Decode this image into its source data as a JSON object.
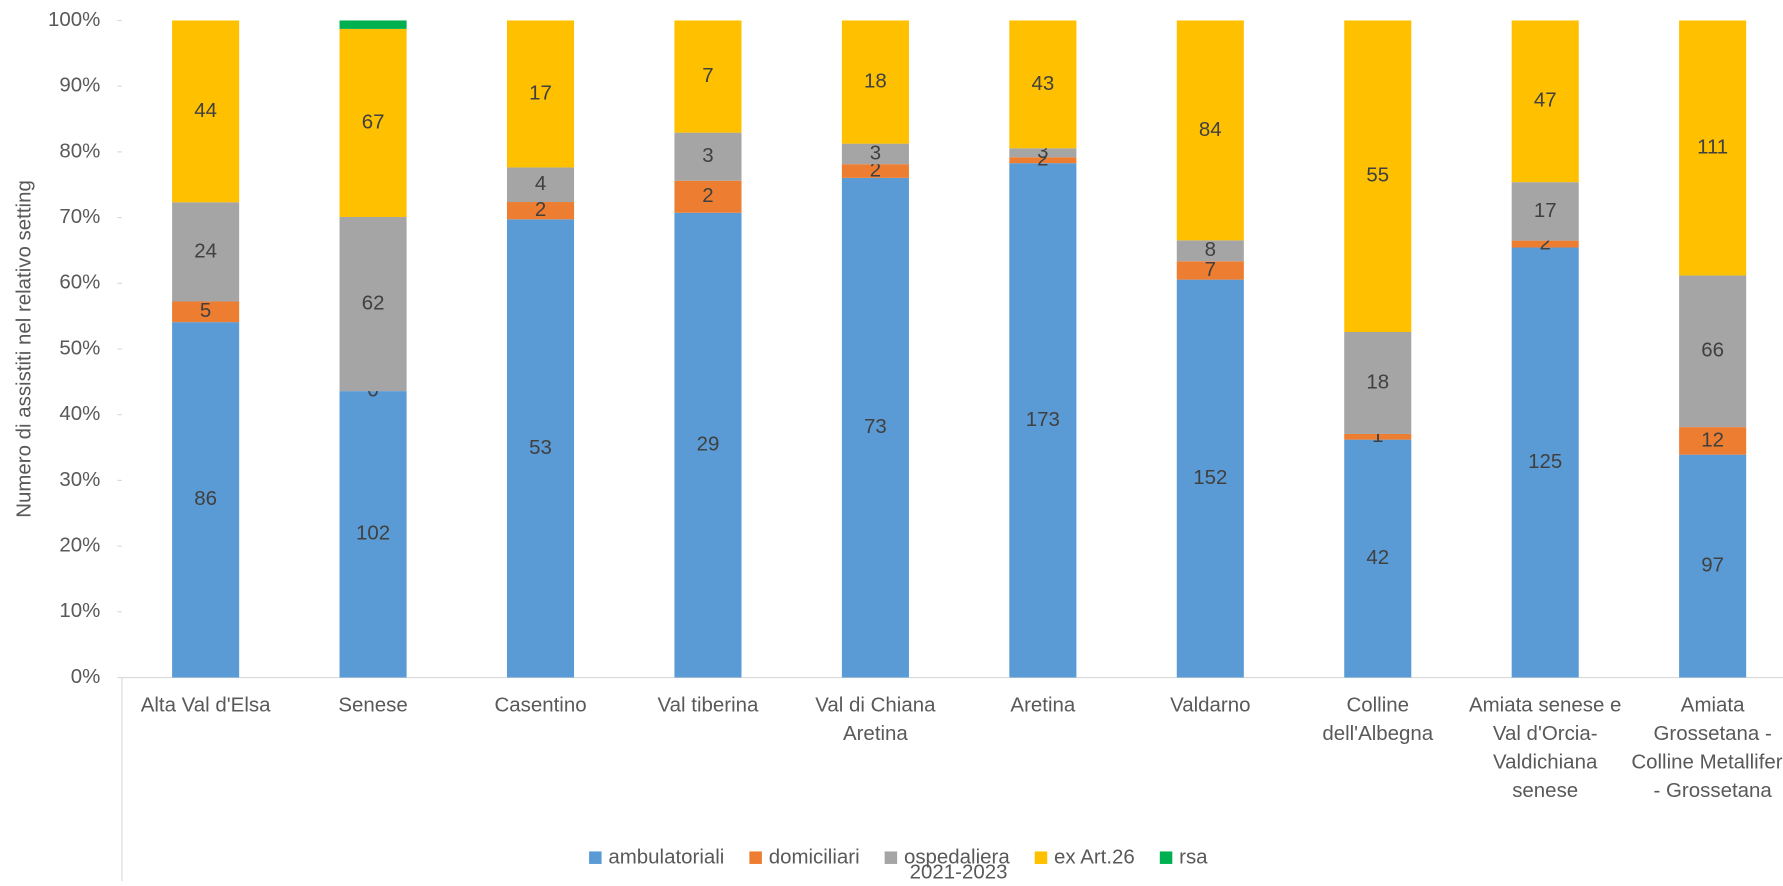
{
  "chart_data": {
    "type": "stacked_percent_bar",
    "y_label": "Numero di assistiti nel relativo setting",
    "x_label": "2021-2023",
    "categories": [
      "Alta Val d'Elsa",
      "Senese",
      "Casentino",
      "Val tiberina",
      "Val di Chiana Aretina",
      "Aretina",
      "Valdarno",
      "Colline dell'Albegna",
      "Amiata senese e Val d'Orcia-Valdichiana senese",
      "Amiata Grossetana - Colline Metallifere - Grossetana"
    ],
    "series": [
      {
        "name": "ambulatoriali",
        "color": "#5b9bd5",
        "data_labels": true,
        "values": [
          86,
          102,
          53,
          29,
          73,
          173,
          152,
          42,
          125,
          97
        ]
      },
      {
        "name": "domiciliari",
        "color": "#ed7d31",
        "data_labels": true,
        "values": [
          5,
          0,
          2,
          2,
          2,
          2,
          7,
          1,
          2,
          12
        ]
      },
      {
        "name": "ospedaliera",
        "color": "#a5a5a5",
        "data_labels": true,
        "values": [
          24,
          62,
          4,
          3,
          3,
          3,
          8,
          18,
          17,
          66
        ]
      },
      {
        "name": "ex Art.26",
        "color": "#ffc000",
        "data_labels": true,
        "values": [
          44,
          67,
          17,
          7,
          18,
          43,
          84,
          55,
          47,
          111
        ]
      },
      {
        "name": "rsa",
        "color": "#00b050",
        "data_labels": false,
        "values": [
          null,
          3,
          null,
          null,
          null,
          null,
          null,
          null,
          null,
          null
        ]
      }
    ],
    "ylim": [
      0,
      100
    ],
    "yticks": [
      {
        "value": 0,
        "label": "0%"
      },
      {
        "value": 10,
        "label": "10%"
      },
      {
        "value": 20,
        "label": "20%"
      },
      {
        "value": 30,
        "label": "30%"
      },
      {
        "value": 40,
        "label": "40%"
      },
      {
        "value": 50,
        "label": "50%"
      },
      {
        "value": 60,
        "label": "60%"
      },
      {
        "value": 70,
        "label": "70%"
      },
      {
        "value": 80,
        "label": "80%"
      },
      {
        "value": 90,
        "label": "90%"
      },
      {
        "value": 100,
        "label": "100%"
      }
    ],
    "legend": "bottom",
    "grid": false
  }
}
